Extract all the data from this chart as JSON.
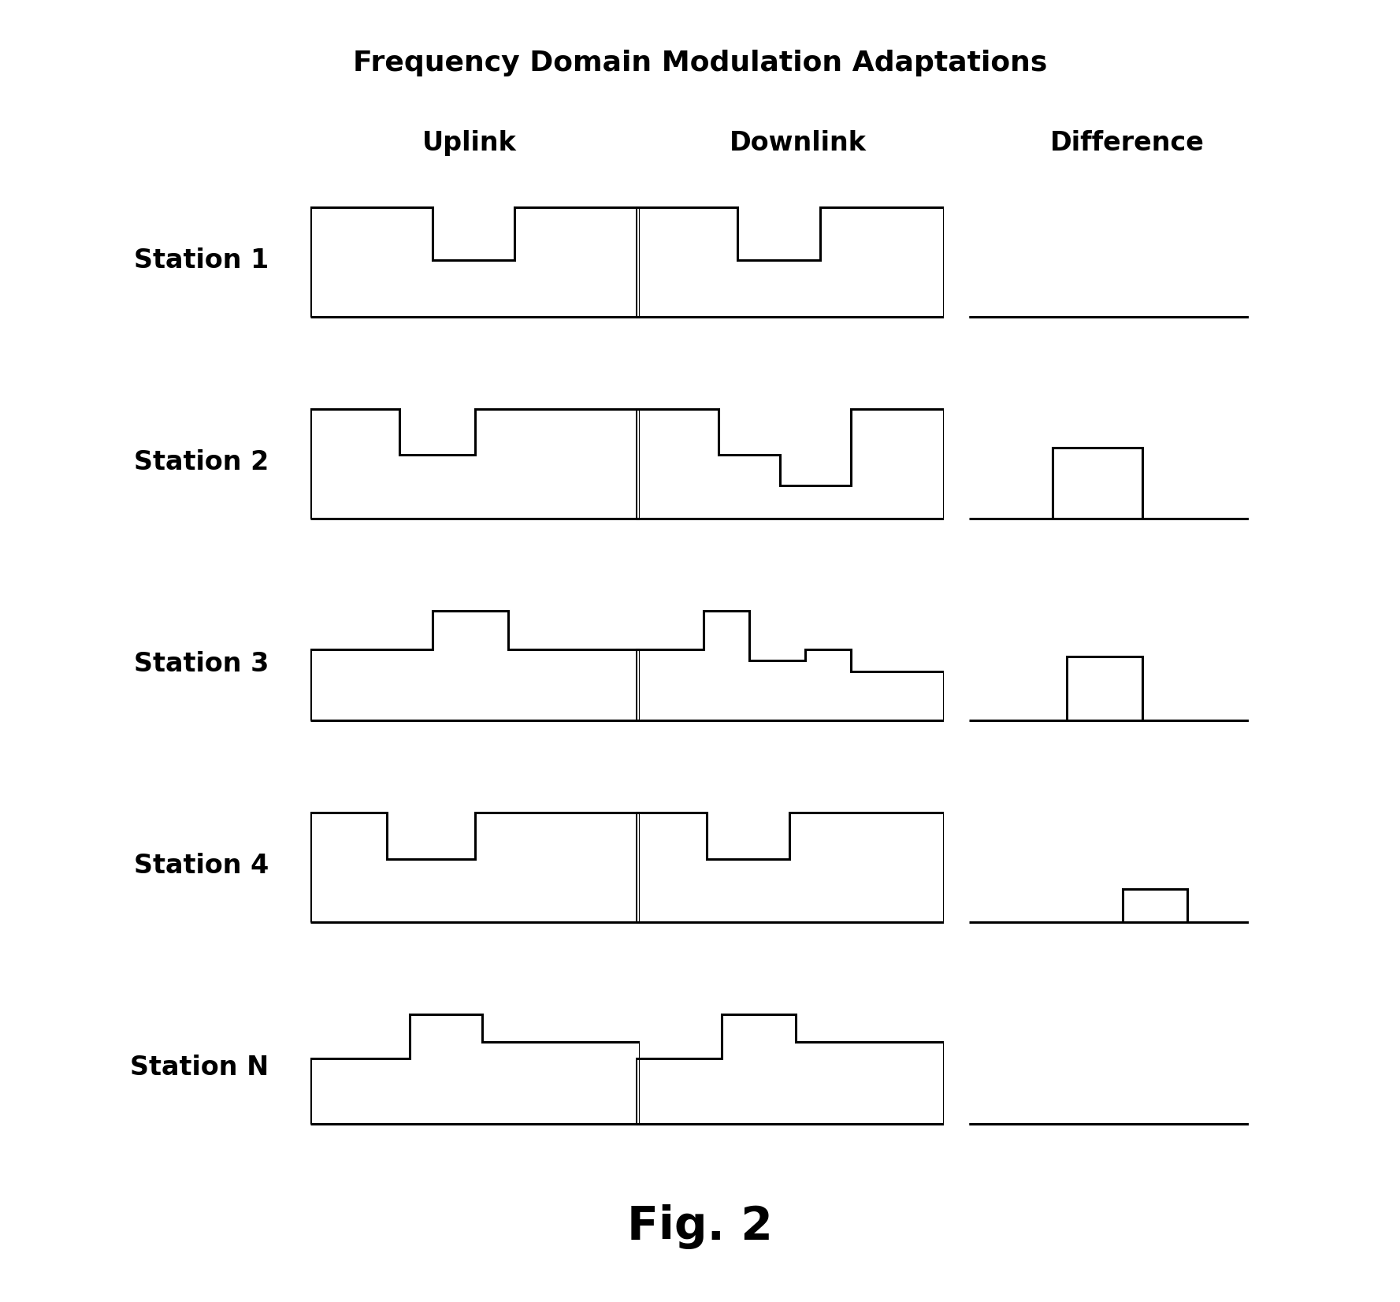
{
  "title": "Frequency Domain Modulation Adaptations",
  "col_headers": [
    "Uplink",
    "Downlink",
    "Difference"
  ],
  "row_labels": [
    "Station 1",
    "Station 2",
    "Station 3",
    "Station 4",
    "Station N"
  ],
  "fig_label": "Fig. 2",
  "background_color": "#ffffff",
  "line_color": "#000000",
  "title_fontsize": 26,
  "header_fontsize": 24,
  "label_fontsize": 24,
  "fig_label_fontsize": 42,
  "lw": 2.2,
  "shapes": {
    "s1_uplink": {
      "x": [
        0,
        0,
        0.37,
        0.37,
        0.62,
        0.62,
        1,
        1
      ],
      "y": [
        0,
        1,
        1,
        0.52,
        0.52,
        1,
        1,
        0
      ]
    },
    "s1_downlink": {
      "x": [
        0,
        0,
        0.33,
        0.33,
        0.6,
        0.6,
        1,
        1
      ],
      "y": [
        0,
        1,
        1,
        0.52,
        0.52,
        1,
        1,
        0
      ]
    },
    "s1_diff": {
      "x": [
        0,
        1
      ],
      "y": [
        0,
        0
      ]
    },
    "s2_uplink": {
      "x": [
        0,
        0,
        0.27,
        0.27,
        0.5,
        0.5,
        1,
        1
      ],
      "y": [
        0,
        1,
        1,
        0.58,
        0.58,
        1,
        1,
        0
      ]
    },
    "s2_downlink": {
      "x": [
        0,
        0,
        0.27,
        0.27,
        0.47,
        0.47,
        0.7,
        0.7,
        1,
        1
      ],
      "y": [
        0,
        1,
        1,
        0.58,
        0.58,
        0.3,
        0.3,
        1,
        1,
        0
      ]
    },
    "s2_diff": {
      "x": [
        0.3,
        0.3,
        0.62,
        0.62
      ],
      "y": [
        0,
        0.65,
        0.65,
        0
      ],
      "baseline": true
    },
    "s3_uplink": {
      "x": [
        0,
        0,
        0.37,
        0.37,
        0.6,
        0.6,
        1,
        1
      ],
      "y": [
        0,
        0.65,
        0.65,
        1,
        1,
        0.65,
        0.65,
        0
      ]
    },
    "s3_downlink": {
      "x": [
        0,
        0,
        0.22,
        0.22,
        0.37,
        0.37,
        0.55,
        0.55,
        0.7,
        0.7,
        1,
        1
      ],
      "y": [
        0,
        0.65,
        0.65,
        1,
        1,
        0.55,
        0.55,
        0.65,
        0.65,
        0.45,
        0.45,
        0
      ]
    },
    "s3_diff": {
      "x": [
        0.35,
        0.35,
        0.62,
        0.62
      ],
      "y": [
        0,
        0.58,
        0.58,
        0
      ],
      "baseline": true
    },
    "s4_uplink": {
      "x": [
        0,
        0,
        0.23,
        0.23,
        0.5,
        0.5,
        1,
        1
      ],
      "y": [
        0,
        1,
        1,
        0.58,
        0.58,
        1,
        1,
        0
      ]
    },
    "s4_downlink": {
      "x": [
        0,
        0,
        0.23,
        0.23,
        0.5,
        0.5,
        1,
        1
      ],
      "y": [
        0,
        1,
        1,
        0.58,
        0.58,
        1,
        1,
        0
      ]
    },
    "s4_diff": {
      "x": [
        0.55,
        0.55,
        0.78,
        0.78
      ],
      "y": [
        0,
        0.3,
        0.3,
        0
      ],
      "baseline": true
    },
    "sN_uplink": {
      "x": [
        0,
        0,
        0.3,
        0.3,
        0.52,
        0.52,
        1,
        1
      ],
      "y": [
        0,
        0.6,
        0.6,
        1,
        1,
        0.75,
        0.75,
        0
      ]
    },
    "sN_downlink": {
      "x": [
        0,
        0,
        0.28,
        0.28,
        0.52,
        0.52,
        1,
        1
      ],
      "y": [
        0,
        0.6,
        0.6,
        1,
        1,
        0.75,
        0.75,
        0
      ]
    },
    "sN_diff": {
      "x": [
        0,
        1
      ],
      "y": [
        0,
        0
      ]
    }
  }
}
